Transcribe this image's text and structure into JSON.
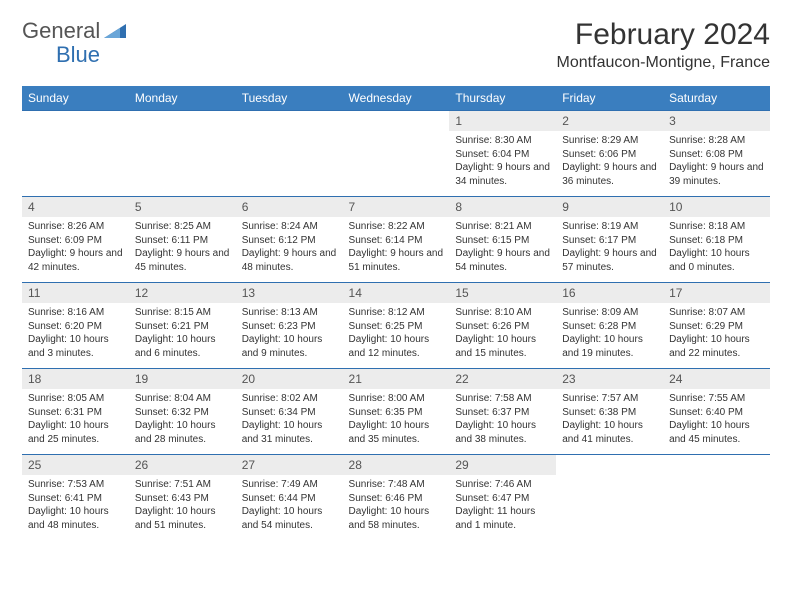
{
  "logo": {
    "text1": "General",
    "text2": "Blue"
  },
  "title": "February 2024",
  "location": "Montfaucon-Montigne, France",
  "accent_color": "#3a7ebf",
  "border_color": "#2f6fb0",
  "daynum_bg": "#ececec",
  "day_headers": [
    "Sunday",
    "Monday",
    "Tuesday",
    "Wednesday",
    "Thursday",
    "Friday",
    "Saturday"
  ],
  "weeks": [
    [
      null,
      null,
      null,
      null,
      {
        "n": "1",
        "sunrise": "8:30 AM",
        "sunset": "6:04 PM",
        "daylight": "9 hours and 34 minutes."
      },
      {
        "n": "2",
        "sunrise": "8:29 AM",
        "sunset": "6:06 PM",
        "daylight": "9 hours and 36 minutes."
      },
      {
        "n": "3",
        "sunrise": "8:28 AM",
        "sunset": "6:08 PM",
        "daylight": "9 hours and 39 minutes."
      }
    ],
    [
      {
        "n": "4",
        "sunrise": "8:26 AM",
        "sunset": "6:09 PM",
        "daylight": "9 hours and 42 minutes."
      },
      {
        "n": "5",
        "sunrise": "8:25 AM",
        "sunset": "6:11 PM",
        "daylight": "9 hours and 45 minutes."
      },
      {
        "n": "6",
        "sunrise": "8:24 AM",
        "sunset": "6:12 PM",
        "daylight": "9 hours and 48 minutes."
      },
      {
        "n": "7",
        "sunrise": "8:22 AM",
        "sunset": "6:14 PM",
        "daylight": "9 hours and 51 minutes."
      },
      {
        "n": "8",
        "sunrise": "8:21 AM",
        "sunset": "6:15 PM",
        "daylight": "9 hours and 54 minutes."
      },
      {
        "n": "9",
        "sunrise": "8:19 AM",
        "sunset": "6:17 PM",
        "daylight": "9 hours and 57 minutes."
      },
      {
        "n": "10",
        "sunrise": "8:18 AM",
        "sunset": "6:18 PM",
        "daylight": "10 hours and 0 minutes."
      }
    ],
    [
      {
        "n": "11",
        "sunrise": "8:16 AM",
        "sunset": "6:20 PM",
        "daylight": "10 hours and 3 minutes."
      },
      {
        "n": "12",
        "sunrise": "8:15 AM",
        "sunset": "6:21 PM",
        "daylight": "10 hours and 6 minutes."
      },
      {
        "n": "13",
        "sunrise": "8:13 AM",
        "sunset": "6:23 PM",
        "daylight": "10 hours and 9 minutes."
      },
      {
        "n": "14",
        "sunrise": "8:12 AM",
        "sunset": "6:25 PM",
        "daylight": "10 hours and 12 minutes."
      },
      {
        "n": "15",
        "sunrise": "8:10 AM",
        "sunset": "6:26 PM",
        "daylight": "10 hours and 15 minutes."
      },
      {
        "n": "16",
        "sunrise": "8:09 AM",
        "sunset": "6:28 PM",
        "daylight": "10 hours and 19 minutes."
      },
      {
        "n": "17",
        "sunrise": "8:07 AM",
        "sunset": "6:29 PM",
        "daylight": "10 hours and 22 minutes."
      }
    ],
    [
      {
        "n": "18",
        "sunrise": "8:05 AM",
        "sunset": "6:31 PM",
        "daylight": "10 hours and 25 minutes."
      },
      {
        "n": "19",
        "sunrise": "8:04 AM",
        "sunset": "6:32 PM",
        "daylight": "10 hours and 28 minutes."
      },
      {
        "n": "20",
        "sunrise": "8:02 AM",
        "sunset": "6:34 PM",
        "daylight": "10 hours and 31 minutes."
      },
      {
        "n": "21",
        "sunrise": "8:00 AM",
        "sunset": "6:35 PM",
        "daylight": "10 hours and 35 minutes."
      },
      {
        "n": "22",
        "sunrise": "7:58 AM",
        "sunset": "6:37 PM",
        "daylight": "10 hours and 38 minutes."
      },
      {
        "n": "23",
        "sunrise": "7:57 AM",
        "sunset": "6:38 PM",
        "daylight": "10 hours and 41 minutes."
      },
      {
        "n": "24",
        "sunrise": "7:55 AM",
        "sunset": "6:40 PM",
        "daylight": "10 hours and 45 minutes."
      }
    ],
    [
      {
        "n": "25",
        "sunrise": "7:53 AM",
        "sunset": "6:41 PM",
        "daylight": "10 hours and 48 minutes."
      },
      {
        "n": "26",
        "sunrise": "7:51 AM",
        "sunset": "6:43 PM",
        "daylight": "10 hours and 51 minutes."
      },
      {
        "n": "27",
        "sunrise": "7:49 AM",
        "sunset": "6:44 PM",
        "daylight": "10 hours and 54 minutes."
      },
      {
        "n": "28",
        "sunrise": "7:48 AM",
        "sunset": "6:46 PM",
        "daylight": "10 hours and 58 minutes."
      },
      {
        "n": "29",
        "sunrise": "7:46 AM",
        "sunset": "6:47 PM",
        "daylight": "11 hours and 1 minute."
      },
      null,
      null
    ]
  ]
}
